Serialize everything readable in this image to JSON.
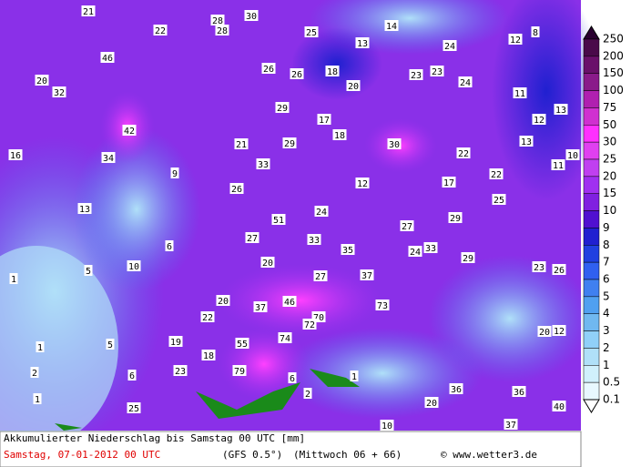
{
  "map": {
    "labels": [
      21,
      22,
      28,
      28,
      30,
      25,
      13,
      14,
      24,
      12,
      8,
      46,
      20,
      32,
      26,
      26,
      18,
      20,
      23,
      23,
      24,
      11,
      13,
      42,
      29,
      17,
      18,
      30,
      12,
      13,
      16,
      34,
      21,
      29,
      33,
      22,
      22,
      11,
      10,
      9,
      26,
      12,
      17,
      25,
      13,
      24,
      51,
      27,
      29,
      27,
      33,
      35,
      24,
      33,
      29,
      6,
      5,
      10,
      20,
      27,
      37,
      23,
      26,
      1,
      20,
      37,
      46,
      73,
      22,
      70,
      72,
      20,
      12,
      19,
      55,
      74,
      5,
      1,
      18,
      2,
      6,
      23,
      79,
      6,
      1,
      1,
      2,
      36,
      36,
      25,
      20,
      40,
      10,
      37
    ]
  },
  "colorbar": {
    "levels": [
      250,
      200,
      150,
      100,
      75,
      50,
      30,
      25,
      20,
      15,
      10,
      9,
      8,
      7,
      6,
      5,
      4,
      3,
      2,
      1,
      0.5,
      0.1
    ],
    "colors": [
      "#2a0030",
      "#4a0a4a",
      "#6a106a",
      "#8a1a8a",
      "#b020b0",
      "#d030d0",
      "#ff30ff",
      "#e040f0",
      "#c040f0",
      "#a030f0",
      "#8020e0",
      "#5010d0",
      "#2020d0",
      "#2040e0",
      "#3060f0",
      "#4080f0",
      "#50a0f0",
      "#70b8f0",
      "#90d0f8",
      "#b0e0f8",
      "#d0f0fc",
      "#e8f8ff",
      "#ffffff"
    ]
  },
  "footer": {
    "title": "Akkumulierter Niederschlag bis Samstag 00 UTC [mm]",
    "date": "Samstag, 07-01-2012  00 UTC",
    "model": "(GFS 0.5°)",
    "run": "(Mittwoch 06 + 66)",
    "source": "© www.wetter3.de"
  }
}
